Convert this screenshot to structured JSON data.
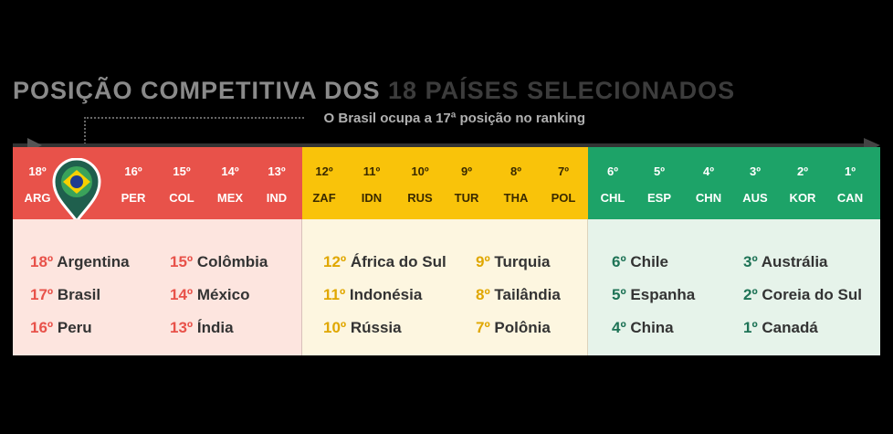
{
  "title": {
    "part1": "POSIÇÃO COMPETITIVA DOS ",
    "part2": "18 PAÍSES SELECIONADOS"
  },
  "subtitle": "O Brasil ocupa a 17ª posição no ranking",
  "colors": {
    "red": "#e8524a",
    "yellow": "#f9c30a",
    "green": "#1da368"
  },
  "icons": {
    "marker": "map-pin-icon",
    "flag": "brazil-flag-icon"
  },
  "groups": [
    {
      "codes": [
        {
          "rank": "18º",
          "code": "ARG"
        },
        {
          "rank": "16º",
          "code": "PER"
        },
        {
          "rank": "15º",
          "code": "COL"
        },
        {
          "rank": "14º",
          "code": "MEX"
        },
        {
          "rank": "13º",
          "code": "IND"
        }
      ],
      "list_left": [
        {
          "rank": "18º",
          "name": "Argentina"
        },
        {
          "rank": "17º",
          "name": "Brasil"
        },
        {
          "rank": "16º",
          "name": "Peru"
        }
      ],
      "list_right": [
        {
          "rank": "15º",
          "name": "Colômbia"
        },
        {
          "rank": "14º",
          "name": "México"
        },
        {
          "rank": "13º",
          "name": "Índia"
        }
      ]
    },
    {
      "codes": [
        {
          "rank": "12º",
          "code": "ZAF"
        },
        {
          "rank": "11º",
          "code": "IDN"
        },
        {
          "rank": "10º",
          "code": "RUS"
        },
        {
          "rank": "9º",
          "code": "TUR"
        },
        {
          "rank": "8º",
          "code": "THA"
        },
        {
          "rank": "7º",
          "code": "POL"
        }
      ],
      "list_left": [
        {
          "rank": "12º",
          "name": "África do Sul"
        },
        {
          "rank": "11º",
          "name": "Indonésia"
        },
        {
          "rank": "10º",
          "name": "Rússia"
        }
      ],
      "list_right": [
        {
          "rank": "9º",
          "name": "Turquia"
        },
        {
          "rank": "8º",
          "name": "Tailândia"
        },
        {
          "rank": "7º",
          "name": "Polônia"
        }
      ]
    },
    {
      "codes": [
        {
          "rank": "6º",
          "code": "CHL"
        },
        {
          "rank": "5º",
          "code": "ESP"
        },
        {
          "rank": "4º",
          "code": "CHN"
        },
        {
          "rank": "3º",
          "code": "AUS"
        },
        {
          "rank": "2º",
          "code": "KOR"
        },
        {
          "rank": "1º",
          "code": "CAN"
        }
      ],
      "list_left": [
        {
          "rank": "6º",
          "name": "Chile"
        },
        {
          "rank": "5º",
          "name": "Espanha"
        },
        {
          "rank": "4º",
          "name": "China"
        }
      ],
      "list_right": [
        {
          "rank": "3º",
          "name": "Austrália"
        },
        {
          "rank": "2º",
          "name": "Coreia do Sul"
        },
        {
          "rank": "1º",
          "name": "Canadá"
        }
      ]
    }
  ]
}
